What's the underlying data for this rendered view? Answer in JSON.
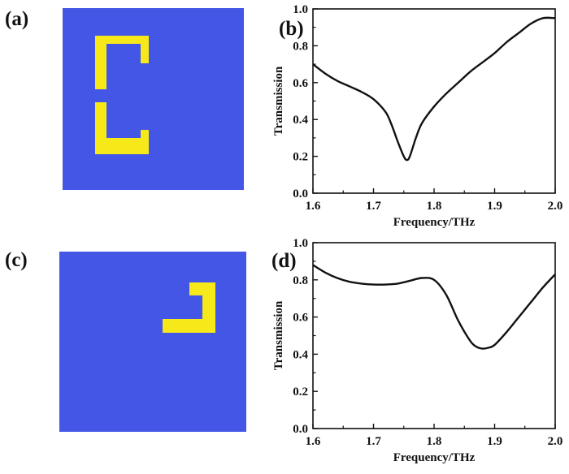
{
  "panels": [
    {
      "label": "(a)"
    },
    {
      "label": "(b)"
    },
    {
      "label": "(c)"
    },
    {
      "label": "(d)"
    }
  ],
  "colors": {
    "substrate": "#4356E6",
    "resonator": "#F7E81A",
    "curve": "#111111"
  },
  "chart_data": [
    {
      "type": "line",
      "panel": "(b)",
      "xlabel": "Frequency/THz",
      "ylabel": "Transmission",
      "xlim": [
        1.6,
        2.0
      ],
      "ylim": [
        0.0,
        1.0
      ],
      "xticks": [
        "1.6",
        "1.7",
        "1.8",
        "1.9",
        "2.0"
      ],
      "yticks": [
        "0.0",
        "0.2",
        "0.4",
        "0.6",
        "0.8",
        "1.0"
      ],
      "grid": false,
      "series": [
        {
          "x": [
            1.6,
            1.62,
            1.64,
            1.66,
            1.68,
            1.7,
            1.72,
            1.73,
            1.74,
            1.75,
            1.755,
            1.76,
            1.77,
            1.78,
            1.8,
            1.82,
            1.84,
            1.86,
            1.88,
            1.9,
            1.92,
            1.94,
            1.96,
            1.98,
            2.0
          ],
          "y": [
            0.7,
            0.65,
            0.61,
            0.58,
            0.55,
            0.51,
            0.44,
            0.37,
            0.28,
            0.2,
            0.18,
            0.2,
            0.3,
            0.38,
            0.47,
            0.54,
            0.6,
            0.66,
            0.71,
            0.76,
            0.82,
            0.87,
            0.92,
            0.95,
            0.95
          ]
        }
      ]
    },
    {
      "type": "line",
      "panel": "(d)",
      "xlabel": "Frequency/THz",
      "ylabel": "Transmission",
      "xlim": [
        1.6,
        2.0
      ],
      "ylim": [
        0.0,
        1.0
      ],
      "xticks": [
        "1.6",
        "1.7",
        "1.8",
        "1.9",
        "2.0"
      ],
      "yticks": [
        "0.0",
        "0.2",
        "0.4",
        "0.6",
        "0.8",
        "1.0"
      ],
      "grid": false,
      "series": [
        {
          "x": [
            1.6,
            1.62,
            1.64,
            1.66,
            1.68,
            1.7,
            1.72,
            1.74,
            1.76,
            1.78,
            1.8,
            1.82,
            1.84,
            1.86,
            1.87,
            1.88,
            1.89,
            1.9,
            1.92,
            1.94,
            1.96,
            1.98,
            2.0
          ],
          "y": [
            0.88,
            0.84,
            0.81,
            0.79,
            0.78,
            0.775,
            0.775,
            0.78,
            0.795,
            0.81,
            0.8,
            0.72,
            0.58,
            0.47,
            0.44,
            0.43,
            0.435,
            0.45,
            0.52,
            0.6,
            0.68,
            0.76,
            0.83
          ]
        }
      ]
    }
  ]
}
